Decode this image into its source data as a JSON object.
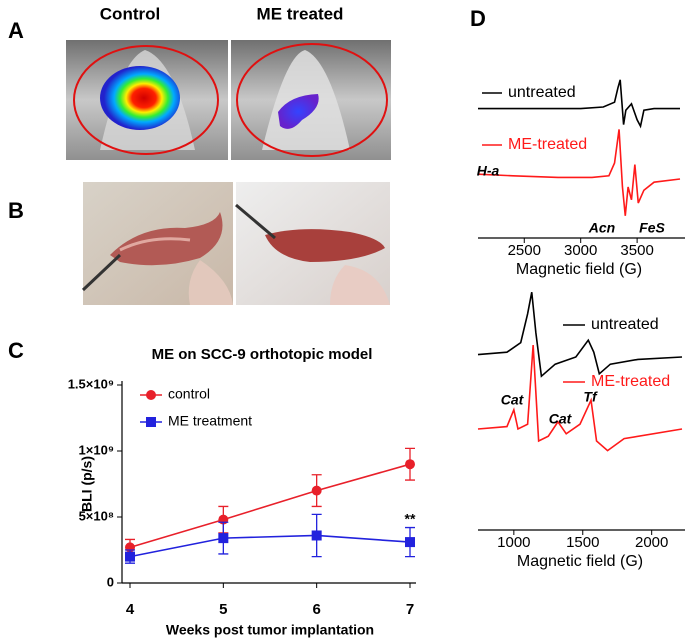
{
  "panels": {
    "A": {
      "label": "A",
      "captions": [
        "Control",
        "ME treated"
      ]
    },
    "B": {
      "label": "B"
    },
    "C": {
      "label": "C"
    },
    "D": {
      "label": "D"
    }
  },
  "chart_data": [
    {
      "type": "line",
      "title": "ME on SCC-9 orthotopic model",
      "x_label": "Weeks post tumor implantation",
      "y_label": "BLI (p/s)",
      "x": [
        4,
        5,
        6,
        7
      ],
      "xlim": [
        4,
        7
      ],
      "xticks": [
        4,
        5,
        6,
        7
      ],
      "ylim": [
        0,
        1500000000
      ],
      "yticks": [
        0,
        {
          "value": 500000000,
          "label": "5×10⁸"
        },
        {
          "value": 1000000000,
          "label": "1×10⁹"
        },
        {
          "value": 1500000000,
          "label": "1.5×10⁹"
        }
      ],
      "series": [
        {
          "name": "control",
          "color": "#e8202a",
          "marker": "circle",
          "values": [
            270000000,
            480000000,
            700000000,
            900000000
          ],
          "errors": [
            60000000,
            100000000,
            120000000,
            120000000
          ]
        },
        {
          "name": "ME treatment",
          "color": "#2222dd",
          "marker": "square",
          "values": [
            200000000,
            340000000,
            360000000,
            310000000
          ],
          "errors": [
            50000000,
            120000000,
            160000000,
            110000000
          ]
        }
      ],
      "annotations": [
        "**"
      ]
    },
    {
      "type": "line",
      "x_label": "Magnetic field (G)",
      "xlim": [
        2090,
        3880
      ],
      "xticks": [
        2500,
        3000,
        3500
      ],
      "ylim": [
        0,
        100
      ],
      "series": [
        {
          "name": "untreated",
          "color": "#000000",
          "x": [
            2090,
            2500,
            3000,
            3200,
            3300,
            3330,
            3350,
            3380,
            3400,
            3450,
            3500,
            3530,
            3560,
            3650,
            3880
          ],
          "values": [
            79,
            79,
            79,
            80,
            83,
            92,
            97,
            69,
            78,
            82,
            72,
            68,
            78,
            79,
            79
          ]
        },
        {
          "name": "ME-treated",
          "color": "#ff1a1a",
          "x": [
            2090,
            2400,
            2800,
            3100,
            3250,
            3300,
            3340,
            3370,
            3395,
            3420,
            3450,
            3480,
            3510,
            3560,
            3650,
            3880
          ],
          "values": [
            38,
            37,
            36,
            36,
            37,
            45,
            66,
            30,
            12,
            30,
            22,
            44,
            20,
            28,
            33,
            35
          ]
        }
      ],
      "annotations": [
        "H-a",
        "Acn",
        "FeS"
      ]
    },
    {
      "type": "line",
      "x_label": "Magnetic field (G)",
      "xlim": [
        740,
        2220
      ],
      "xticks": [
        1000,
        1500,
        2000
      ],
      "ylim": [
        0,
        100
      ],
      "series": [
        {
          "name": "untreated",
          "color": "#000000",
          "x": [
            740,
            950,
            1050,
            1100,
            1130,
            1160,
            1200,
            1300,
            1450,
            1540,
            1580,
            1620,
            1700,
            1900,
            2220
          ],
          "values": [
            71,
            72,
            76,
            88,
            97,
            80,
            62,
            67,
            70,
            77,
            72,
            63,
            67,
            69,
            70
          ]
        },
        {
          "name": "ME-treated",
          "color": "#ff1a1a",
          "x": [
            740,
            950,
            1000,
            1030,
            1100,
            1140,
            1180,
            1250,
            1320,
            1380,
            1480,
            1560,
            1600,
            1680,
            1800,
            2220
          ],
          "values": [
            40,
            41,
            48,
            40,
            42,
            75,
            35,
            37,
            43,
            38,
            42,
            52,
            35,
            31,
            36,
            40
          ]
        }
      ],
      "annotations": [
        "Cat",
        "Cat",
        "Tf"
      ]
    }
  ]
}
